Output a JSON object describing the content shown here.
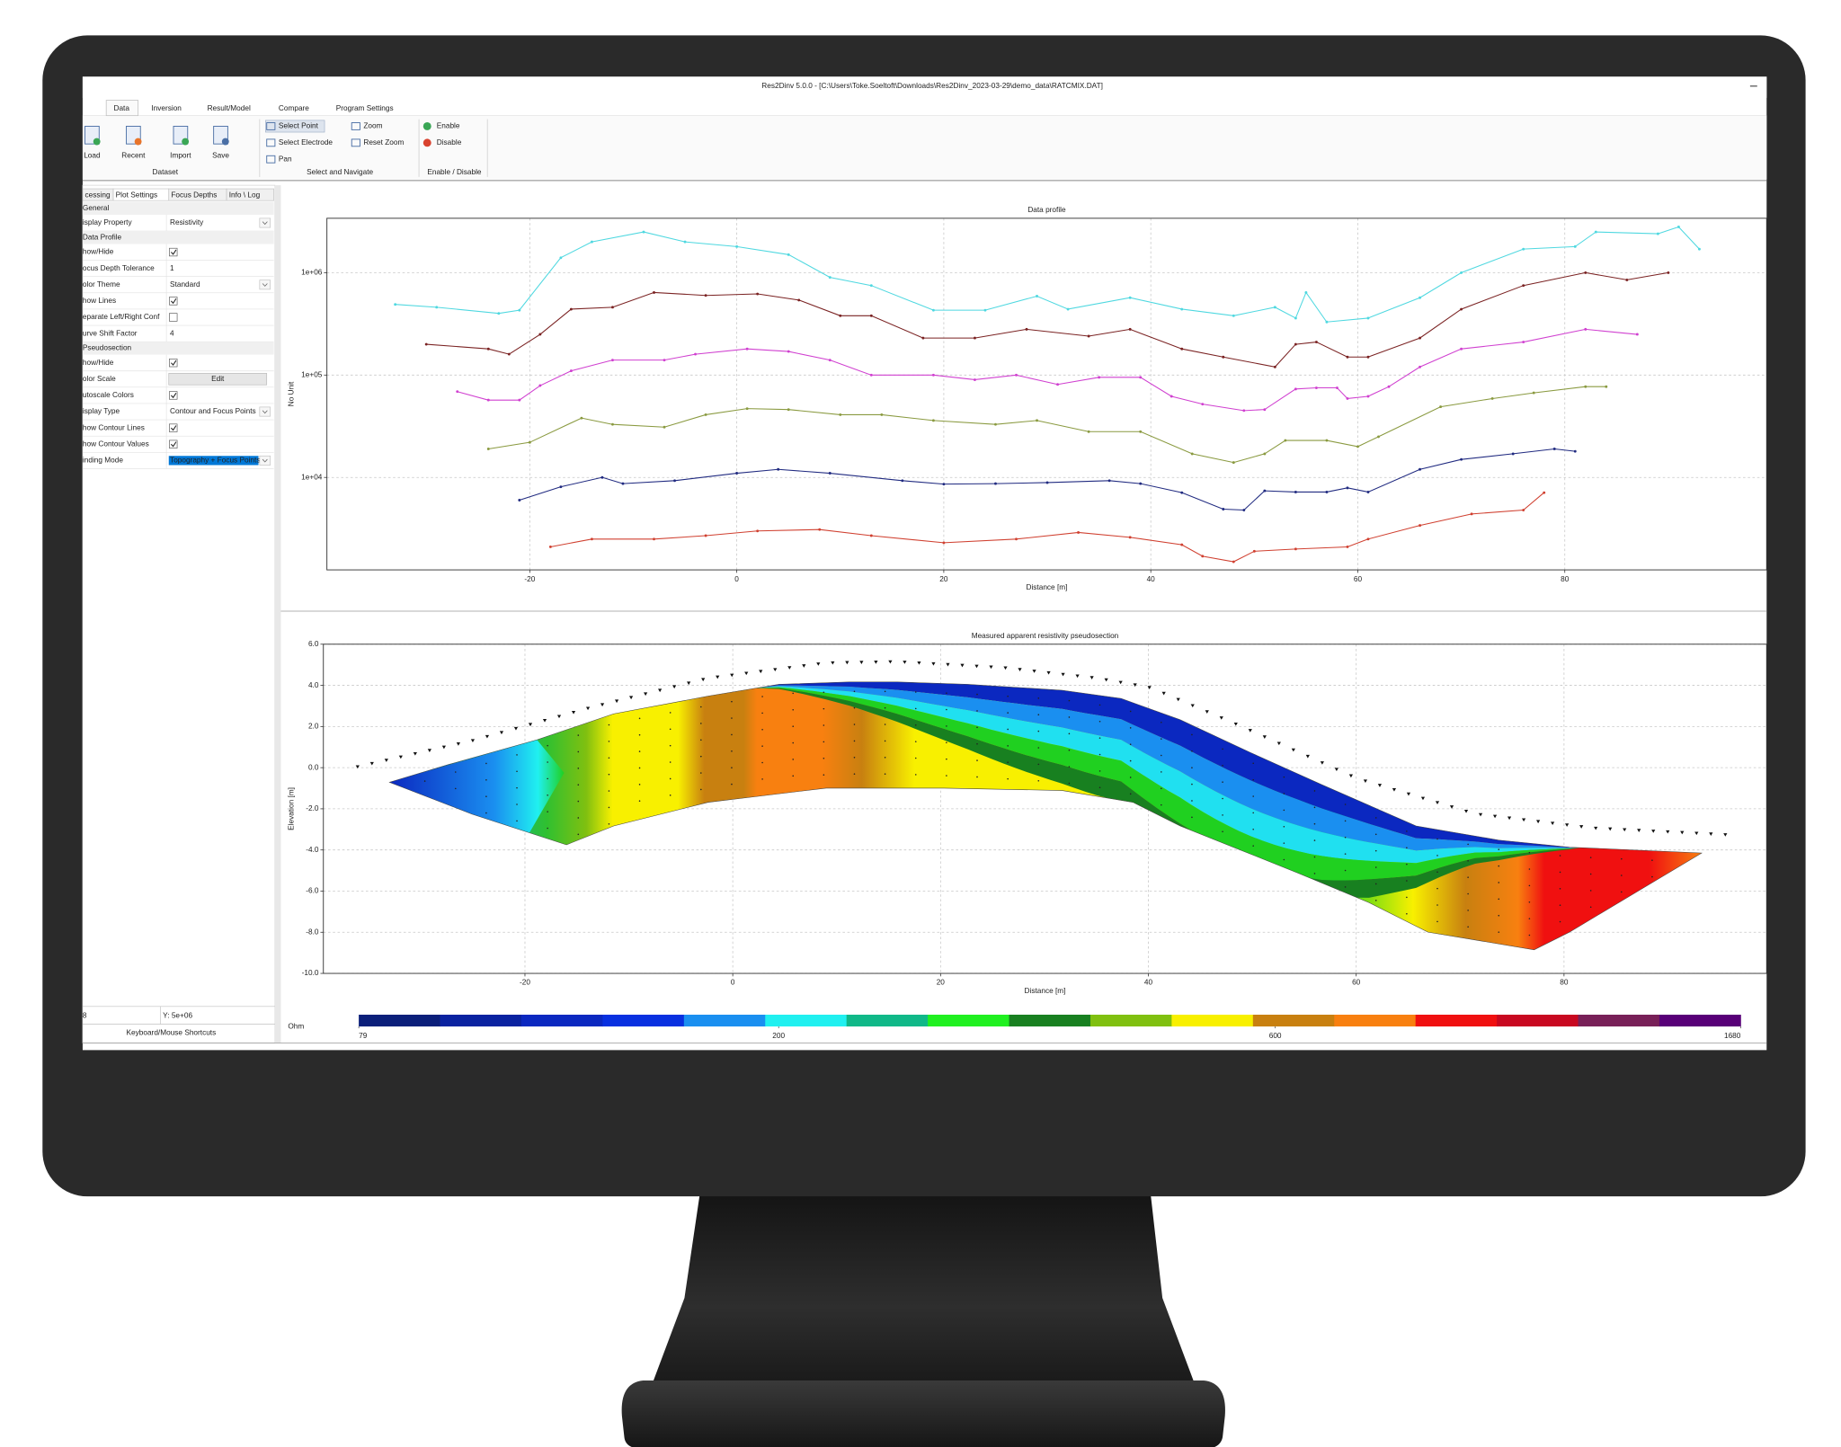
{
  "window": {
    "title": "Res2Dinv 5.0.0  -  [C:\\Users\\Toke.Soeltoft\\Downloads\\Res2Dinv_2023-03-29\\demo_data\\RATCMIX.DAT]",
    "tabs": [
      "Data",
      "Inversion",
      "Result/Model",
      "Compare",
      "Program Settings"
    ],
    "active_tab": 0
  },
  "ribbon": {
    "groups": [
      {
        "label": "Dataset",
        "buttons": [
          "Load",
          "Recent",
          "Import",
          "Save"
        ]
      },
      {
        "label": "Select and Navigate",
        "buttons": [
          "Select Point",
          "Select Electrode",
          "Pan",
          "Zoom",
          "Reset Zoom"
        ]
      },
      {
        "label": "Enable / Disable",
        "buttons": [
          "Enable",
          "Disable"
        ]
      }
    ]
  },
  "left_panel": {
    "tabs": [
      "cessing",
      "Plot Settings",
      "Focus Depths",
      "Info \\ Log"
    ],
    "rows": [
      {
        "section": "General"
      },
      {
        "label": "isplay Property",
        "value": "Resistivity",
        "dropdown": true
      },
      {
        "section": "Data Profile"
      },
      {
        "label": "how/Hide",
        "checked": true
      },
      {
        "label": "ocus Depth Tolerance",
        "value": "1"
      },
      {
        "label": "olor Theme",
        "value": "Standard",
        "dropdown": true
      },
      {
        "label": "how Lines",
        "checked": true
      },
      {
        "label": "eparate Left/Right Conf",
        "checked": false
      },
      {
        "label": "urve Shift Factor",
        "value": "4"
      },
      {
        "section": "Pseudosection"
      },
      {
        "label": "how/Hide",
        "checked": true
      },
      {
        "label": "olor Scale",
        "button": "Edit"
      },
      {
        "label": "utoscale Colors",
        "checked": true
      },
      {
        "label": "isplay Type",
        "value": "Contour and Focus Points",
        "dropdown": true
      },
      {
        "label": "how Contour Lines",
        "checked": true
      },
      {
        "label": "how Contour Values",
        "checked": true
      },
      {
        "label": "inding Mode",
        "value": "Topography + Focus Points",
        "dropdown": true,
        "selected": true
      }
    ]
  },
  "status": {
    "x": "8",
    "y": "Y: 5e+06",
    "shortcuts": "Keyboard/Mouse Shortcuts"
  },
  "chart_data": [
    {
      "type": "line",
      "title": "Data profile",
      "xlabel": "Distance [m]",
      "ylabel": "No Unit",
      "xlim": [
        -39.6,
        99.5
      ],
      "xticks": [
        -20,
        0,
        20,
        40,
        60,
        80
      ],
      "ylim": [
        1250,
        3400000
      ],
      "log_y": true,
      "yticks": [
        {
          "value": 10000,
          "label": "1e+04"
        },
        {
          "value": 100000,
          "label": "1e+05"
        },
        {
          "value": 1000000,
          "label": "1e+06"
        }
      ],
      "grid": true,
      "series": [
        {
          "color": "#4fd8e0",
          "x": [
            -33,
            -29,
            -23,
            -21,
            -17,
            -14,
            -9,
            -5,
            0,
            5,
            9,
            13,
            19,
            24,
            29,
            32,
            38,
            43,
            48,
            52,
            54,
            55,
            57,
            61,
            66,
            70,
            76,
            81,
            83,
            89,
            91,
            93
          ],
          "values": [
            490000,
            460000,
            400000,
            430000,
            1400000,
            2000000,
            2500000,
            2000000,
            1800000,
            1500000,
            900000,
            750000,
            430000,
            430000,
            590000,
            440000,
            570000,
            440000,
            380000,
            460000,
            360000,
            640000,
            330000,
            360000,
            570000,
            1000000,
            1700000,
            1800000,
            2500000,
            2400000,
            2800000,
            1700000
          ]
        },
        {
          "color": "#7a2222",
          "x": [
            -30,
            -24,
            -22,
            -19,
            -16,
            -12,
            -8,
            -3,
            2,
            6,
            10,
            13,
            18,
            23,
            28,
            34,
            38,
            43,
            47,
            52,
            54,
            56,
            59,
            61,
            66,
            70,
            76,
            82,
            86,
            90
          ],
          "values": [
            200000,
            180000,
            160000,
            250000,
            440000,
            460000,
            640000,
            600000,
            620000,
            540000,
            380000,
            380000,
            230000,
            230000,
            280000,
            240000,
            280000,
            180000,
            150000,
            120000,
            200000,
            210000,
            150000,
            150000,
            230000,
            440000,
            750000,
            1000000,
            850000,
            1000000
          ]
        },
        {
          "color": "#d040d0",
          "x": [
            -27,
            -24,
            -21,
            -19,
            -16,
            -12,
            -7,
            -4,
            1,
            5,
            9,
            13,
            19,
            23,
            27,
            31,
            35,
            39,
            42,
            45,
            49,
            51,
            54,
            56,
            58,
            59,
            61,
            63,
            66,
            70,
            76,
            82,
            87
          ],
          "values": [
            69000,
            57000,
            57000,
            79000,
            110000,
            140000,
            140000,
            160000,
            180000,
            170000,
            140000,
            100000,
            100000,
            90000,
            100000,
            81000,
            95000,
            95000,
            62000,
            52000,
            45000,
            46000,
            73000,
            75000,
            75000,
            59000,
            62000,
            77000,
            120000,
            180000,
            210000,
            280000,
            250000
          ]
        },
        {
          "color": "#8a9a40",
          "x": [
            -24,
            -20,
            -15,
            -12,
            -7,
            -3,
            1,
            5,
            10,
            14,
            19,
            25,
            29,
            34,
            39,
            44,
            48,
            51,
            53,
            57,
            60,
            62,
            68,
            73,
            77,
            82,
            84
          ],
          "values": [
            19000,
            22000,
            38000,
            33000,
            31000,
            41000,
            47000,
            46000,
            41000,
            41000,
            36000,
            33000,
            36000,
            28000,
            28000,
            17000,
            14000,
            17000,
            23000,
            23000,
            20000,
            25000,
            49000,
            59000,
            67000,
            77000,
            77000
          ]
        },
        {
          "color": "#202a80",
          "x": [
            -21,
            -17,
            -13,
            -11,
            -6,
            0,
            4,
            9,
            16,
            20,
            25,
            30,
            36,
            39,
            43,
            47,
            49,
            51,
            54,
            57,
            59,
            61,
            66,
            70,
            75,
            79,
            81
          ],
          "values": [
            6000,
            8100,
            10000,
            8700,
            9300,
            11000,
            12000,
            11000,
            9300,
            8600,
            8700,
            8900,
            9300,
            8700,
            7100,
            4900,
            4800,
            7400,
            7200,
            7200,
            7900,
            7200,
            12000,
            15000,
            17000,
            19000,
            18000
          ]
        },
        {
          "color": "#d04030",
          "x": [
            -18,
            -14,
            -8,
            -3,
            2,
            8,
            13,
            20,
            27,
            33,
            38,
            43,
            45,
            48,
            50,
            54,
            59,
            61,
            66,
            71,
            76,
            78
          ],
          "values": [
            2100,
            2500,
            2500,
            2700,
            3000,
            3100,
            2700,
            2300,
            2500,
            2900,
            2600,
            2200,
            1700,
            1500,
            1900,
            2000,
            2100,
            2500,
            3400,
            4400,
            4800,
            7100
          ]
        }
      ]
    },
    {
      "type": "contour",
      "title": "Measured apparent resistivity pseudosection",
      "xlabel": "Distance [m]",
      "ylabel": "Elevation [m]",
      "xlim": [
        -39.4,
        99.5
      ],
      "xticks": [
        -20,
        0,
        20,
        40,
        60,
        80
      ],
      "ylim": [
        -10,
        6
      ],
      "yticks": [
        {
          "value": 6,
          "label": "6.0"
        },
        {
          "value": 4,
          "label": "4.0"
        },
        {
          "value": 2,
          "label": "2.0"
        },
        {
          "value": 0,
          "label": "0.0"
        },
        {
          "value": -2,
          "label": "-2.0"
        },
        {
          "value": -4,
          "label": "-4.0"
        },
        {
          "value": -6,
          "label": "-6.0"
        },
        {
          "value": -8,
          "label": "-8.0"
        },
        {
          "value": -10,
          "label": "-10.0"
        }
      ],
      "grid": true,
      "colorbar": {
        "unit": "Ohm",
        "lim": [
          79,
          1680
        ],
        "log": true,
        "ticks": [
          79,
          200,
          600,
          1680
        ],
        "colors": [
          "#0b1f7a",
          "#0a22a0",
          "#0b28c0",
          "#0830e0",
          "#1a8ff0",
          "#20f0f0",
          "#10b888",
          "#20f020",
          "#188020",
          "#80c010",
          "#f8f000",
          "#c88010",
          "#f88010",
          "#f01010",
          "#c80820",
          "#782058",
          "#580078"
        ]
      }
    }
  ]
}
